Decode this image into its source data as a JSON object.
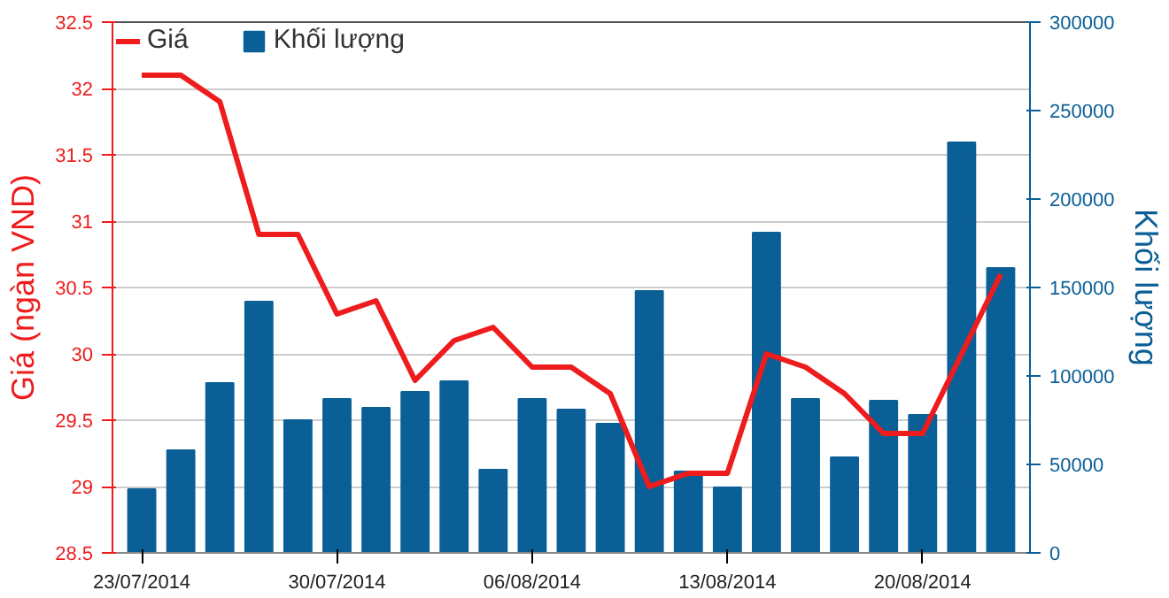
{
  "chart_data": {
    "type": "bar",
    "ylabel": "Giá (ngàn VND)",
    "y2label": "Khối lượng",
    "categories": [
      "23/07/2014",
      null,
      null,
      null,
      null,
      "30/07/2014",
      null,
      null,
      null,
      null,
      "06/08/2014",
      null,
      null,
      null,
      null,
      "13/08/2014",
      null,
      null,
      null,
      null,
      "20/08/2014",
      null,
      null
    ],
    "series": [
      {
        "name": "Giá",
        "type": "line",
        "color": "#ee1c1c",
        "values": [
          32.1,
          32.1,
          31.9,
          30.9,
          30.9,
          30.3,
          30.4,
          29.8,
          30.1,
          30.2,
          29.9,
          29.9,
          29.7,
          29.0,
          29.1,
          29.1,
          30.0,
          29.9,
          29.7,
          29.4,
          29.4,
          30.0,
          30.6
        ]
      },
      {
        "name": "Khối lượng",
        "axis": "y2",
        "color": "#0a5f96",
        "values": [
          36000,
          58000,
          96000,
          142000,
          75000,
          87000,
          82000,
          91000,
          97000,
          47000,
          87000,
          81000,
          73000,
          148000,
          46000,
          37000,
          181000,
          87000,
          54000,
          86000,
          78000,
          232000,
          161000
        ]
      }
    ],
    "ylim": [
      28.5,
      32.5
    ],
    "yticks": [
      28.5,
      29,
      29.5,
      30,
      30.5,
      31,
      31.5,
      32,
      32.5
    ],
    "y2lim": [
      0,
      300000
    ],
    "y2ticks": [
      0,
      50000,
      100000,
      150000,
      200000,
      250000,
      300000
    ],
    "grid": "y",
    "legend": "top left"
  }
}
